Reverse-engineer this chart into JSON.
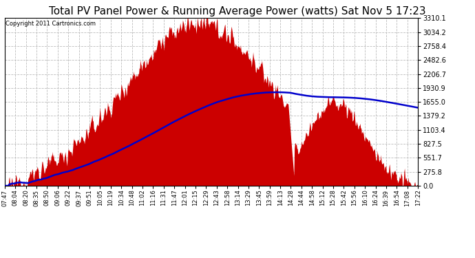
{
  "title": "Total PV Panel Power & Running Average Power (watts) Sat Nov 5 17:23",
  "copyright": "Copyright 2011 Cartronics.com",
  "title_fontsize": 11,
  "background_color": "#ffffff",
  "plot_bg_color": "#ffffff",
  "grid_color": "#cccccc",
  "fill_color": "#cc0000",
  "line_color": "#0000cc",
  "ylim": [
    0.0,
    3310.1
  ],
  "ytick_labels": [
    "0.0",
    "275.8",
    "551.7",
    "827.5",
    "1103.4",
    "1379.2",
    "1655.0",
    "1930.9",
    "2206.7",
    "2482.6",
    "2758.4",
    "3034.2",
    "3310.1"
  ],
  "ytick_vals": [
    0.0,
    275.8,
    551.7,
    827.5,
    1103.4,
    1379.2,
    1655.0,
    1930.9,
    2206.7,
    2482.6,
    2758.4,
    3034.2,
    3310.1
  ],
  "xtick_labels": [
    "07:47",
    "08:04",
    "08:20",
    "08:35",
    "08:50",
    "09:06",
    "09:22",
    "09:37",
    "09:51",
    "10:05",
    "10:19",
    "10:34",
    "10:48",
    "11:02",
    "11:16",
    "11:31",
    "11:47",
    "12:01",
    "12:15",
    "12:29",
    "12:43",
    "12:58",
    "13:14",
    "13:29",
    "13:45",
    "13:59",
    "14:13",
    "14:28",
    "14:44",
    "14:58",
    "15:12",
    "15:28",
    "15:42",
    "15:56",
    "16:10",
    "16:24",
    "16:39",
    "16:54",
    "17:08",
    "17:22"
  ]
}
